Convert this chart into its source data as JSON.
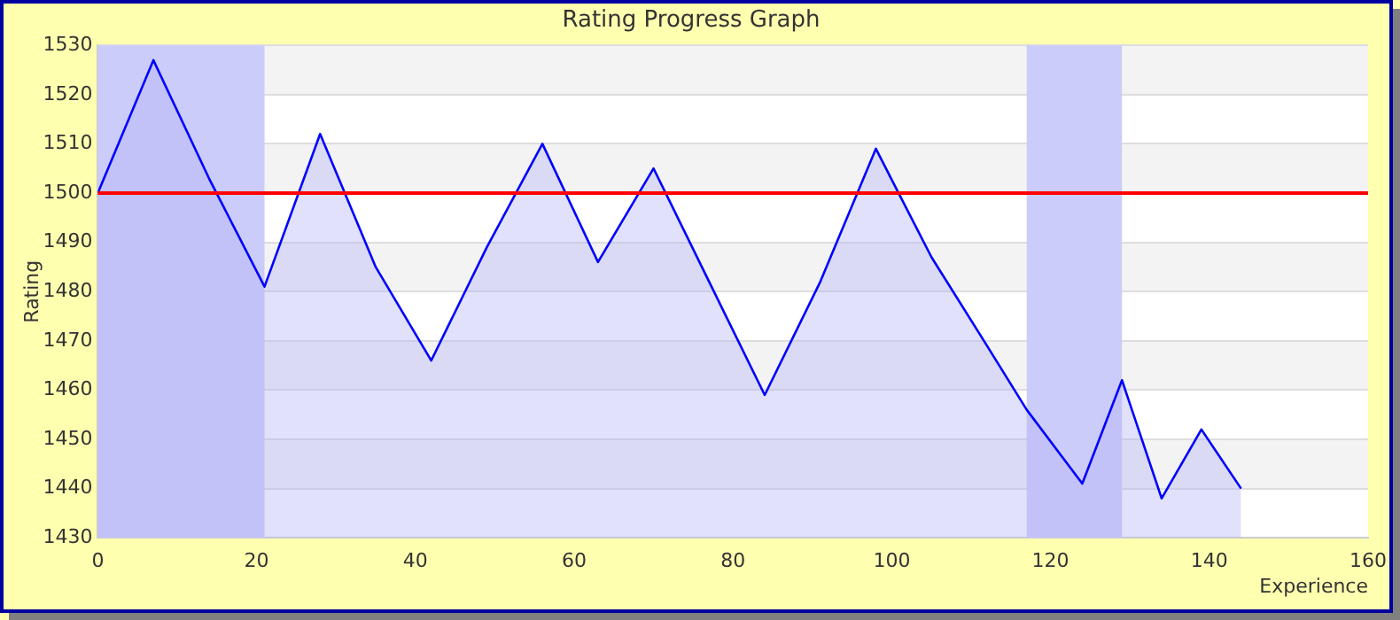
{
  "chart_data": {
    "type": "area",
    "title": "Rating Progress Graph",
    "xlabel": "Experience",
    "ylabel": "Rating",
    "x": [
      0,
      7,
      14,
      21,
      28,
      35,
      42,
      49,
      56,
      63,
      70,
      77,
      84,
      91,
      98,
      105,
      112,
      117,
      124,
      129,
      134,
      139,
      144
    ],
    "series": [
      {
        "color": "#0000ff",
        "values": [
          1500,
          1527,
          1503,
          1481,
          1512,
          1485,
          1466,
          1489,
          1510,
          1486,
          1505,
          1482,
          1459,
          1482,
          1509,
          1487,
          1469,
          1456,
          1441,
          1462,
          1438,
          1452,
          1440
        ]
      }
    ],
    "xlim": [
      0,
      160
    ],
    "xticks": [
      0,
      20,
      40,
      60,
      80,
      100,
      120,
      140,
      160
    ],
    "ylim": [
      1430,
      1530
    ],
    "yticks": [
      1430,
      1440,
      1450,
      1460,
      1470,
      1480,
      1490,
      1500,
      1510,
      1520,
      1530
    ],
    "ref_lines": [
      {
        "axis": "y",
        "value": 1500,
        "color": "#ff0000"
      }
    ],
    "bands": [
      {
        "axis": "x",
        "from": 0,
        "to": 21,
        "color": "#ccccfa"
      },
      {
        "axis": "x",
        "from": 117,
        "to": 129,
        "color": "#ccccfa"
      }
    ],
    "grid": "y",
    "legend": false
  }
}
